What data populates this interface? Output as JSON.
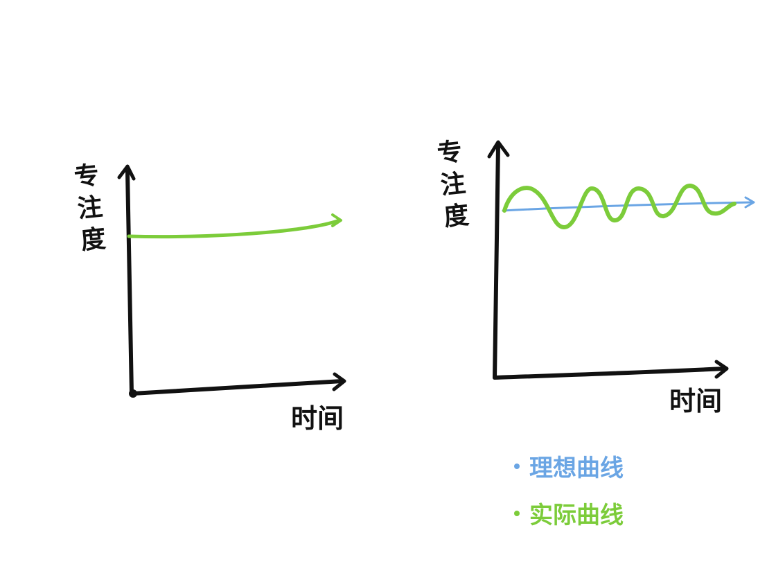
{
  "colors": {
    "ink": "#111111",
    "green": "#7ccc3a",
    "blue": "#6aa5e4"
  },
  "left_chart": {
    "y_label": "专注度",
    "x_label": "时间"
  },
  "right_chart": {
    "y_label": "专注度",
    "x_label": "时间"
  },
  "legend": {
    "items": [
      {
        "label": "理想曲线",
        "color": "#6aa5e4"
      },
      {
        "label": "实际曲线",
        "color": "#7ccc3a"
      }
    ]
  }
}
